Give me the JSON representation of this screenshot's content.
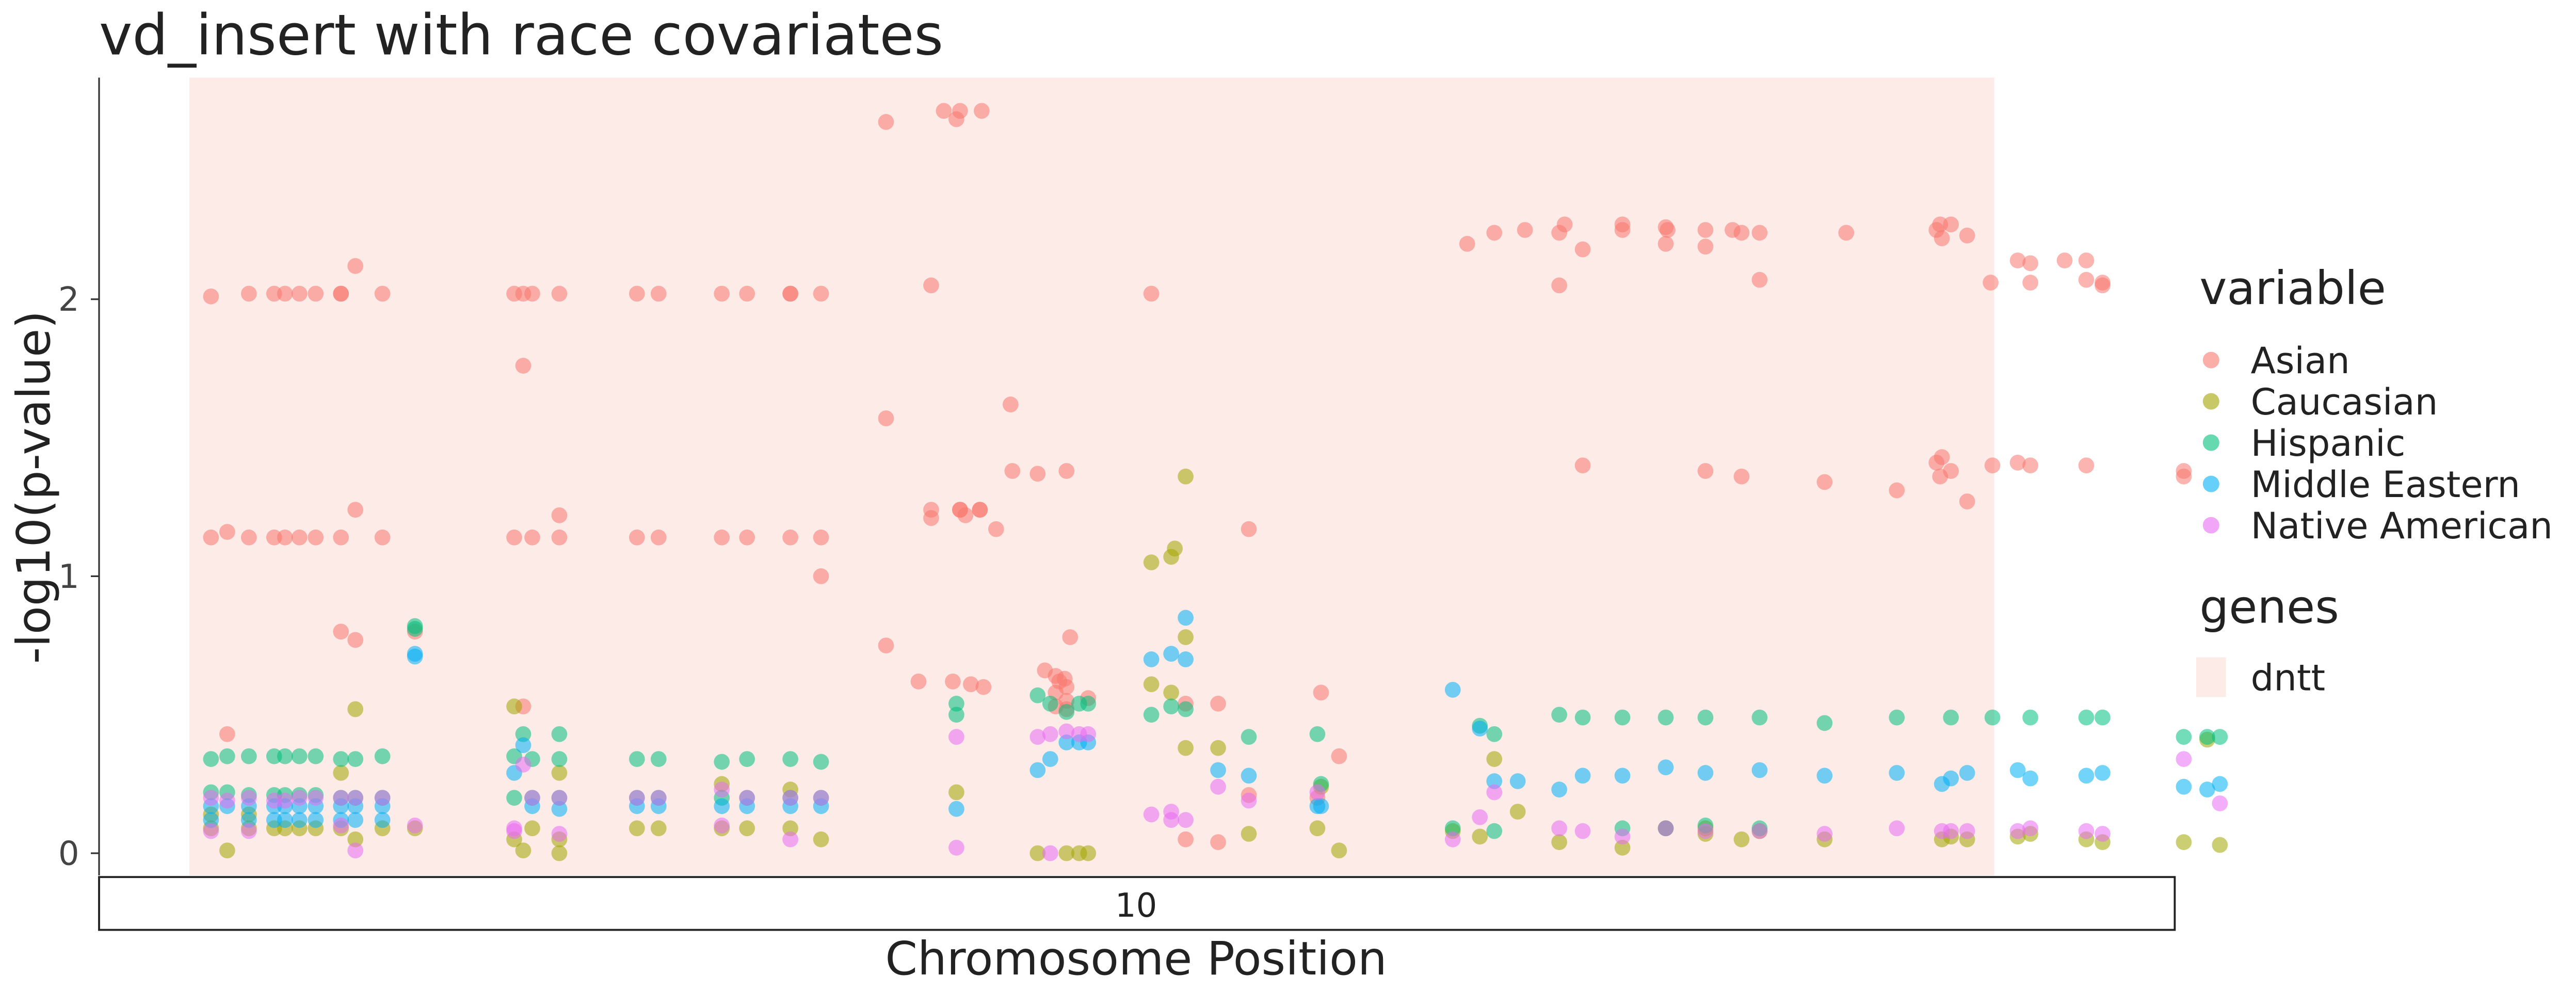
{
  "chart_data": {
    "type": "scatter",
    "title": "vd_insert with race covariates",
    "xlabel": "Chromosome Position",
    "ylabel": "-log10(p-value)",
    "facet_label": "10",
    "ylim": [
      -0.08,
      2.8
    ],
    "y_ticks": [
      "0",
      "1",
      "2"
    ],
    "y_tick_values": [
      0,
      1,
      2
    ],
    "grid": false,
    "legend_position": "right",
    "legend": {
      "variable_title": "variable",
      "variable_items": [
        {
          "name": "Asian",
          "color": "#F8766D"
        },
        {
          "name": "Caucasian",
          "color": "#A3A500"
        },
        {
          "name": "Hispanic",
          "color": "#00BF7D"
        },
        {
          "name": "Middle Eastern",
          "color": "#00B0F6"
        },
        {
          "name": "Native American",
          "color": "#E76BF3"
        }
      ],
      "genes_title": "genes",
      "genes_items": [
        {
          "name": "dntt",
          "color": "#FDEBE8"
        }
      ]
    },
    "gene_region": {
      "gene": "dntt",
      "x_start": 0,
      "x_end": 100
    },
    "x_range": [
      -5,
      110
    ],
    "series": [
      {
        "name": "Asian",
        "x": [
          1.2,
          3.3,
          4.7,
          5.3,
          6.1,
          7.0,
          8.4,
          9.2,
          10.7,
          18.0,
          19.0,
          20.5,
          24.8,
          26.0,
          29.5,
          30.9,
          33.3,
          35.0,
          1.2,
          2.1,
          3.3,
          4.7,
          5.3,
          6.1,
          7.0,
          8.4,
          9.2,
          10.7,
          18.0,
          19.0,
          20.5,
          24.8,
          26.0,
          29.5,
          30.9,
          33.3,
          35.0,
          8.4,
          18.5,
          2.1,
          8.4,
          18.5,
          33.3,
          12.5,
          9.2,
          35.0,
          18.5,
          20.5,
          42.5,
          38.6,
          41.1,
          41.8,
          42.7,
          43.9,
          38.6,
          45.5,
          47.0,
          41.1,
          42.7,
          43.8,
          38.6,
          41.1,
          42.7,
          43.8,
          44.7,
          43.0,
          45.6,
          40.4,
          48.6,
          42.3,
          43.3,
          44.0,
          48.2,
          48.5,
          47.4,
          48.0,
          48.6,
          48.0,
          48.6,
          48.0,
          48.6,
          48.8,
          49.8,
          55.2,
          57.0,
          55.2,
          57.0,
          62.7,
          63.7,
          53.3,
          58.7,
          58.7,
          62.5,
          86.0,
          70.8,
          72.3,
          74.0,
          76.2,
          79.4,
          81.8,
          84.0,
          87.0,
          75.9,
          79.4,
          81.9,
          85.5,
          91.8,
          97.6,
          98.5,
          97.1,
          97.0,
          96.8,
          101.3,
          103.9,
          102.0,
          105.1,
          106.0,
          99.8,
          102.0,
          105.1,
          106.0,
          110.5,
          97.6,
          99.9,
          102.0,
          105.1,
          97.1,
          97.0,
          96.8,
          101.3,
          110.5,
          98.5,
          77.2,
          81.8,
          84.0,
          87.0,
          75.9,
          77.2,
          84.0,
          86.0,
          90.6,
          94.6
        ],
        "y": [
          2.01,
          2.02,
          2.02,
          2.02,
          2.02,
          2.02,
          2.02,
          2.12,
          2.02,
          2.02,
          2.02,
          2.02,
          2.02,
          2.02,
          2.02,
          2.02,
          2.02,
          2.02,
          1.14,
          1.16,
          1.14,
          1.14,
          1.14,
          1.14,
          1.14,
          1.14,
          1.24,
          1.14,
          1.14,
          1.14,
          1.14,
          1.14,
          1.14,
          1.14,
          1.14,
          1.14,
          1.14,
          0.8,
          0.53,
          0.43,
          2.02,
          2.02,
          2.02,
          0.8,
          0.77,
          1.0,
          1.76,
          1.22,
          2.65,
          2.64,
          1.21,
          2.68,
          2.68,
          2.68,
          1.57,
          1.62,
          1.37,
          2.05,
          1.24,
          1.24,
          0.75,
          1.24,
          1.24,
          1.24,
          1.17,
          1.22,
          1.38,
          0.62,
          1.38,
          0.62,
          0.61,
          0.6,
          0.62,
          0.63,
          0.66,
          0.58,
          0.55,
          0.53,
          0.52,
          0.64,
          0.6,
          0.78,
          0.56,
          0.54,
          0.54,
          0.05,
          0.04,
          0.58,
          0.35,
          2.02,
          1.17,
          0.21,
          0.2,
          2.24,
          2.2,
          2.24,
          2.25,
          2.27,
          2.25,
          2.26,
          2.25,
          2.24,
          2.24,
          2.27,
          2.25,
          2.25,
          2.24,
          2.27,
          2.23,
          2.22,
          2.27,
          2.25,
          2.14,
          2.14,
          2.13,
          2.14,
          2.06,
          2.06,
          2.06,
          2.07,
          2.05,
          1.38,
          1.38,
          1.4,
          1.4,
          1.4,
          1.43,
          1.36,
          1.41,
          1.41,
          1.36,
          1.27,
          2.18,
          2.2,
          2.19,
          2.07,
          2.05,
          1.4,
          1.38,
          1.36,
          1.34,
          1.31
        ]
      },
      {
        "name": "Caucasian",
        "x": [
          1.2,
          2.1,
          3.3,
          4.7,
          5.3,
          6.1,
          7.0,
          8.4,
          9.2,
          10.7,
          12.5,
          18.0,
          19.0,
          20.5,
          24.8,
          26.0,
          29.5,
          30.9,
          33.3,
          35.0,
          1.2,
          3.3,
          8.4,
          9.2,
          18.0,
          20.5,
          29.5,
          33.3,
          18.5,
          20.5,
          42.5,
          47.0,
          48.6,
          49.3,
          49.8,
          53.3,
          54.4,
          54.6,
          55.2,
          53.3,
          54.4,
          55.2,
          55.2,
          57.0,
          58.7,
          62.5,
          63.7,
          62.7,
          70.0,
          71.5,
          72.3,
          73.6,
          79.4,
          81.8,
          84.0,
          87.0,
          75.9,
          84.0,
          86.0,
          90.6,
          97.1,
          97.6,
          98.5,
          101.3,
          102.0,
          105.1,
          106.0,
          110.5,
          111.8,
          112.5
        ],
        "y": [
          0.09,
          0.01,
          0.09,
          0.09,
          0.09,
          0.09,
          0.09,
          0.09,
          0.05,
          0.09,
          0.09,
          0.05,
          0.09,
          0.05,
          0.09,
          0.09,
          0.09,
          0.09,
          0.09,
          0.05,
          0.14,
          0.14,
          0.29,
          0.52,
          0.53,
          0.29,
          0.25,
          0.23,
          0.01,
          0.0,
          0.22,
          0.0,
          0.0,
          0.0,
          0.0,
          1.05,
          1.07,
          1.1,
          1.36,
          0.61,
          0.58,
          0.78,
          0.38,
          0.38,
          0.07,
          0.09,
          0.01,
          0.24,
          0.08,
          0.06,
          0.34,
          0.15,
          0.02,
          0.09,
          0.07,
          0.08,
          0.04,
          0.09,
          0.05,
          0.05,
          0.05,
          0.06,
          0.05,
          0.06,
          0.07,
          0.05,
          0.04,
          0.04,
          0.41,
          0.03
        ]
      },
      {
        "name": "Hispanic",
        "x": [
          1.2,
          2.1,
          3.3,
          4.7,
          5.3,
          6.1,
          7.0,
          8.4,
          9.2,
          10.7,
          18.0,
          19.0,
          20.5,
          24.8,
          26.0,
          29.5,
          30.9,
          33.3,
          35.0,
          12.5,
          12.5,
          18.5,
          20.5,
          42.5,
          42.5,
          47.0,
          47.7,
          48.6,
          49.3,
          49.8,
          53.3,
          54.4,
          55.2,
          58.7,
          62.5,
          62.7,
          71.5,
          72.3,
          75.9,
          77.2,
          79.4,
          81.8,
          84.0,
          87.0,
          90.6,
          94.6,
          97.6,
          99.9,
          102.0,
          105.1,
          106.0,
          110.5,
          111.8,
          112.5,
          1.2,
          2.1,
          3.3,
          4.7,
          5.3,
          6.1,
          7.0,
          8.4,
          9.2,
          10.7,
          18.0,
          19.0,
          20.5,
          24.8,
          26.0,
          29.5,
          30.9,
          33.3,
          35.0,
          70.0,
          72.3,
          79.4,
          81.8,
          84.0,
          87.0
        ],
        "y": [
          0.34,
          0.35,
          0.35,
          0.35,
          0.35,
          0.35,
          0.35,
          0.34,
          0.34,
          0.35,
          0.35,
          0.34,
          0.34,
          0.34,
          0.34,
          0.33,
          0.34,
          0.34,
          0.33,
          0.81,
          0.82,
          0.43,
          0.43,
          0.54,
          0.5,
          0.57,
          0.54,
          0.51,
          0.54,
          0.54,
          0.5,
          0.53,
          0.52,
          0.42,
          0.43,
          0.25,
          0.46,
          0.43,
          0.5,
          0.49,
          0.49,
          0.49,
          0.49,
          0.49,
          0.47,
          0.49,
          0.49,
          0.49,
          0.49,
          0.49,
          0.49,
          0.42,
          0.42,
          0.42,
          0.22,
          0.22,
          0.21,
          0.21,
          0.21,
          0.21,
          0.21,
          0.2,
          0.2,
          0.2,
          0.2,
          0.2,
          0.2,
          0.2,
          0.2,
          0.2,
          0.2,
          0.2,
          0.2,
          0.09,
          0.08,
          0.09,
          0.09,
          0.1,
          0.09
        ]
      },
      {
        "name": "Middle Eastern",
        "x": [
          1.2,
          2.1,
          3.3,
          4.7,
          5.3,
          6.1,
          7.0,
          8.4,
          9.2,
          10.7,
          12.5,
          12.5,
          18.0,
          19.0,
          20.5,
          24.8,
          26.0,
          29.5,
          30.9,
          33.3,
          35.0,
          18.5,
          42.5,
          47.0,
          47.7,
          48.6,
          49.3,
          49.8,
          53.3,
          54.4,
          55.2,
          55.2,
          57.0,
          58.7,
          62.5,
          62.7,
          70.0,
          71.5,
          72.3,
          73.6,
          75.9,
          77.2,
          79.4,
          81.8,
          84.0,
          87.0,
          90.6,
          94.6,
          97.1,
          97.6,
          98.5,
          101.3,
          102.0,
          105.1,
          106.0,
          110.5,
          111.8,
          112.5,
          1.2,
          3.3,
          4.7,
          5.3,
          6.1,
          7.0,
          8.4,
          9.2,
          10.7
        ],
        "y": [
          0.17,
          0.17,
          0.17,
          0.17,
          0.17,
          0.17,
          0.17,
          0.17,
          0.17,
          0.17,
          0.71,
          0.72,
          0.29,
          0.17,
          0.16,
          0.17,
          0.17,
          0.17,
          0.17,
          0.17,
          0.17,
          0.39,
          0.16,
          0.3,
          0.34,
          0.4,
          0.4,
          0.4,
          0.7,
          0.72,
          0.85,
          0.7,
          0.3,
          0.28,
          0.17,
          0.17,
          0.59,
          0.45,
          0.26,
          0.26,
          0.23,
          0.28,
          0.28,
          0.31,
          0.29,
          0.3,
          0.28,
          0.29,
          0.25,
          0.27,
          0.29,
          0.3,
          0.27,
          0.28,
          0.29,
          0.24,
          0.23,
          0.25,
          0.12,
          0.12,
          0.12,
          0.12,
          0.12,
          0.12,
          0.12,
          0.12,
          0.12
        ]
      },
      {
        "name": "Native American",
        "x": [
          1.2,
          2.1,
          3.3,
          4.7,
          5.3,
          6.1,
          7.0,
          8.4,
          9.2,
          10.7,
          12.5,
          18.0,
          19.0,
          20.5,
          24.8,
          26.0,
          29.5,
          30.9,
          33.3,
          35.0,
          18.5,
          42.5,
          47.0,
          47.7,
          48.6,
          49.3,
          49.8,
          53.3,
          54.4,
          57.0,
          58.7,
          62.5,
          70.0,
          71.5,
          72.3,
          75.9,
          77.2,
          79.4,
          81.8,
          84.0,
          87.0,
          90.6,
          94.6,
          97.1,
          97.6,
          98.5,
          101.3,
          102.0,
          105.1,
          106.0,
          110.5,
          112.5,
          1.2,
          3.3,
          8.4,
          9.2,
          18.0,
          20.5,
          29.5,
          33.3,
          42.5,
          47.7,
          54.4,
          55.2
        ],
        "y": [
          0.2,
          0.19,
          0.2,
          0.19,
          0.19,
          0.2,
          0.2,
          0.2,
          0.2,
          0.2,
          0.1,
          0.09,
          0.2,
          0.2,
          0.2,
          0.2,
          0.23,
          0.2,
          0.2,
          0.2,
          0.32,
          0.42,
          0.42,
          0.43,
          0.44,
          0.43,
          0.43,
          0.14,
          0.15,
          0.24,
          0.19,
          0.22,
          0.05,
          0.13,
          0.22,
          0.09,
          0.08,
          0.06,
          0.09,
          0.08,
          0.08,
          0.07,
          0.09,
          0.08,
          0.08,
          0.08,
          0.08,
          0.09,
          0.08,
          0.07,
          0.34,
          0.18,
          0.08,
          0.08,
          0.1,
          0.01,
          0.08,
          0.07,
          0.1,
          0.05,
          0.02,
          0.0,
          0.12,
          0.12
        ]
      }
    ]
  }
}
